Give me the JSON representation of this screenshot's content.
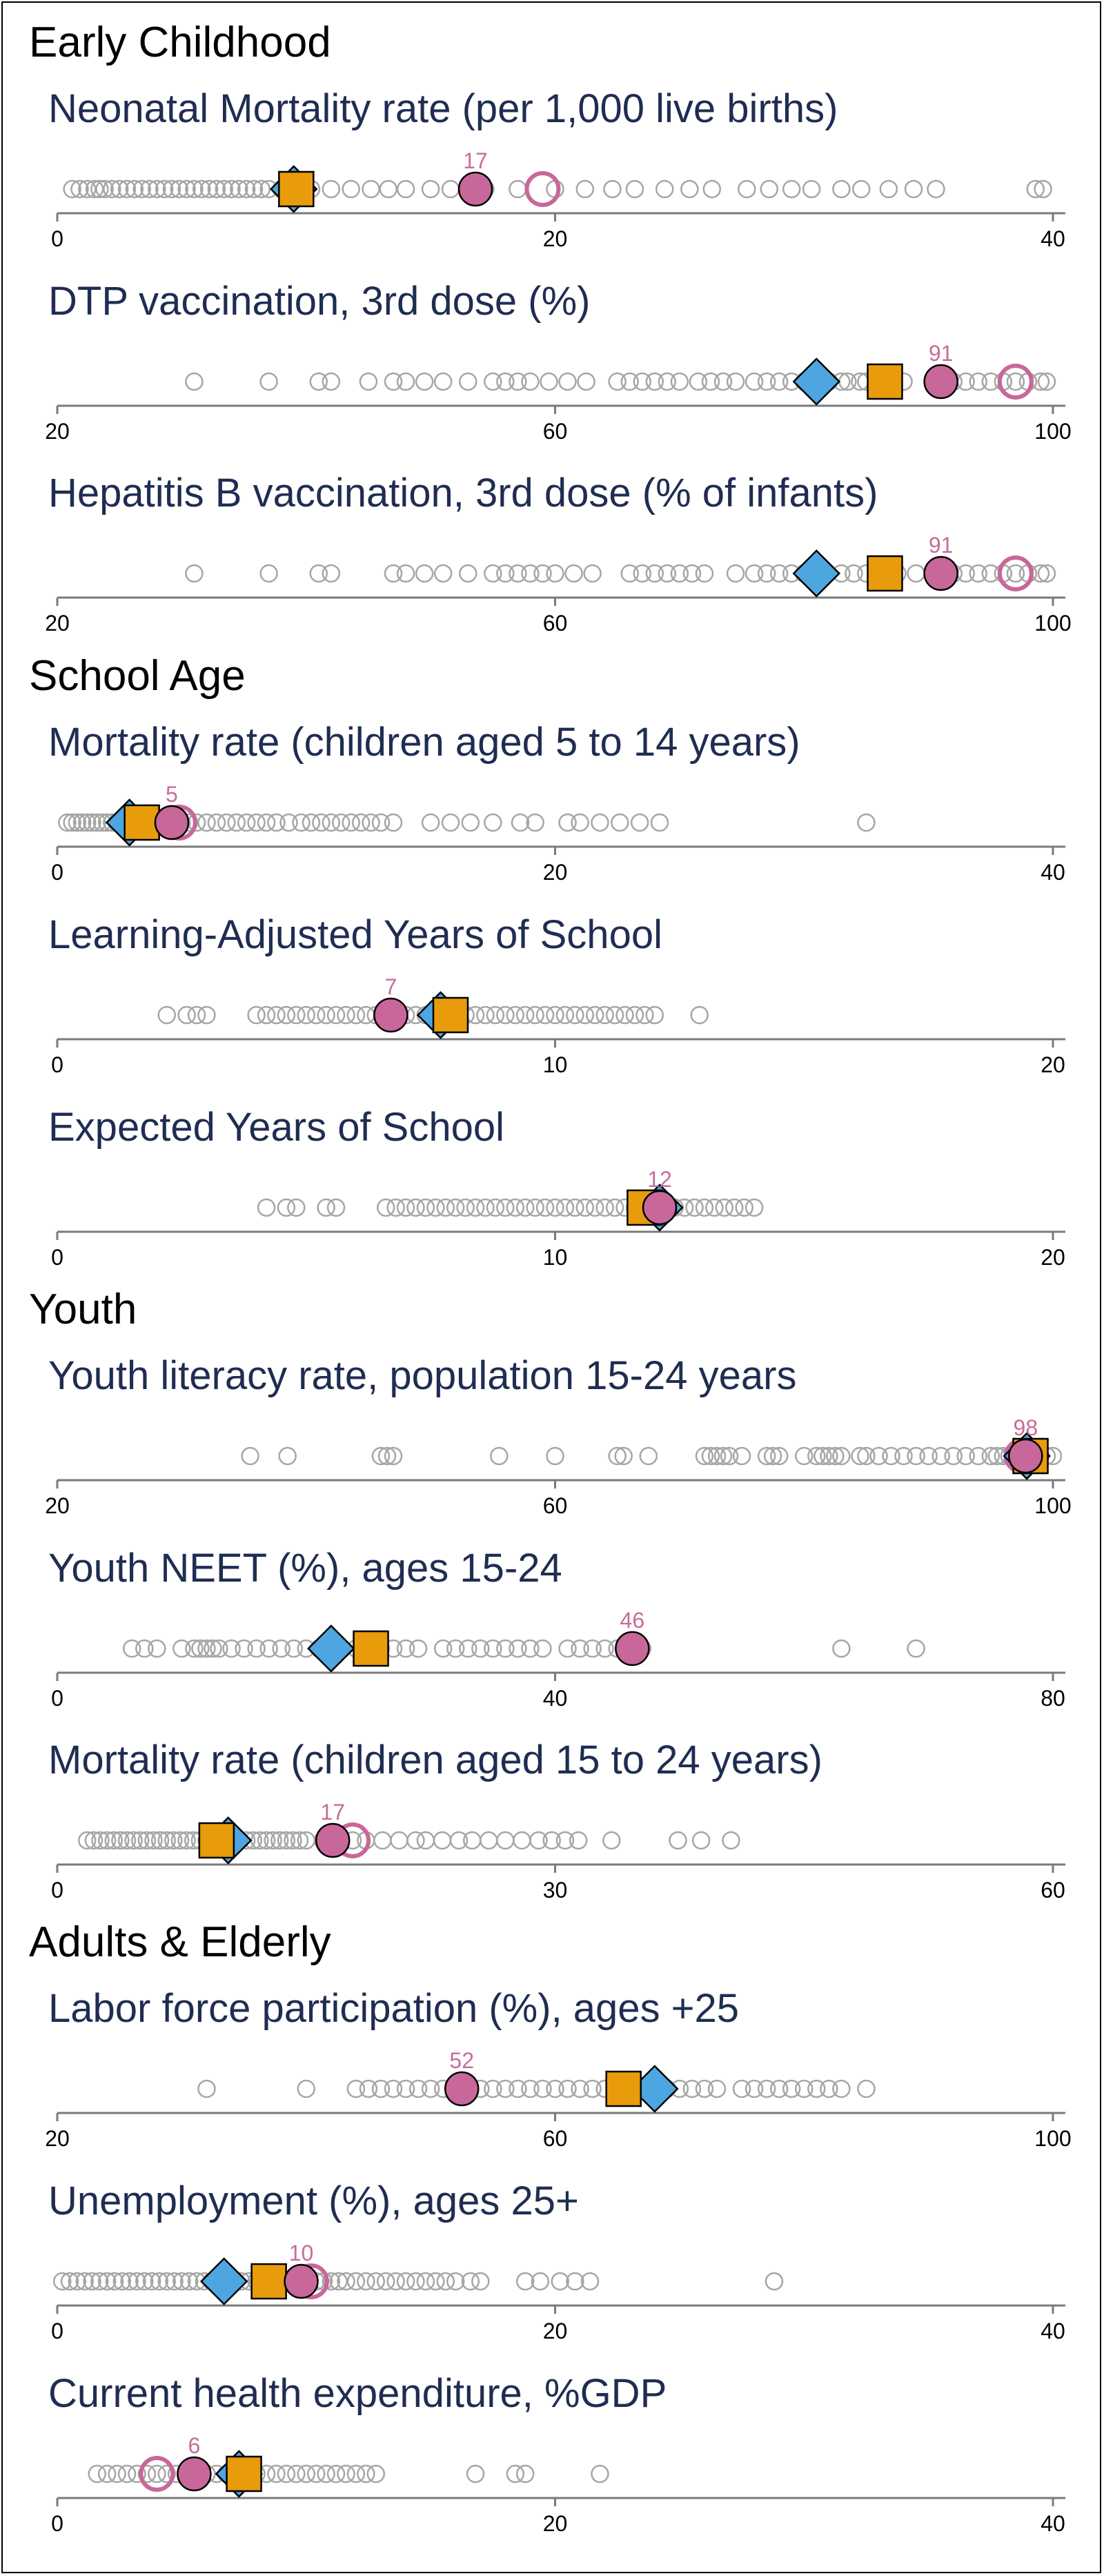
{
  "colors": {
    "other": "#a6a6a6",
    "country": "#c8679a",
    "region_square": "#e89c0c",
    "income_diamond": "#4da6df",
    "title": "#1f2d52"
  },
  "chart_data": [
    {
      "type": "scatter",
      "section": "Early Childhood",
      "title": "Neonatal Mortality rate (per 1,000 live births)",
      "xlim": [
        0,
        40
      ],
      "ticks": [
        0,
        20,
        40
      ],
      "others": [
        0.6,
        0.9,
        1.2,
        1.5,
        1.7,
        1.9,
        2.2,
        2.5,
        2.8,
        3.1,
        3.4,
        3.7,
        4.0,
        4.3,
        4.6,
        4.9,
        5.2,
        5.5,
        5.8,
        6.1,
        6.4,
        6.7,
        7.0,
        7.3,
        7.6,
        7.9,
        8.2,
        8.5,
        9.0,
        9.5,
        10.2,
        11.0,
        11.8,
        12.6,
        13.3,
        14.0,
        15.0,
        15.8,
        17.2,
        18.5,
        20.0,
        21.2,
        22.3,
        23.2,
        24.4,
        25.4,
        26.3,
        27.7,
        28.6,
        29.5,
        30.3,
        31.5,
        32.3,
        33.4,
        34.4,
        35.3,
        39.3,
        39.6
      ],
      "country": 16.8,
      "country_label": "17",
      "country_previous": 19.5,
      "region": 9.6,
      "income_group": 9.5
    },
    {
      "type": "scatter",
      "section": "",
      "title": "DTP vaccination, 3rd dose (%)",
      "xlim": [
        20,
        100
      ],
      "ticks": [
        20,
        60,
        100
      ],
      "others": [
        31,
        37,
        41,
        42,
        45,
        47,
        48,
        49.5,
        51,
        53,
        55,
        56,
        57,
        58,
        59.5,
        61,
        62.5,
        65,
        66,
        67,
        68,
        69,
        70,
        71.5,
        72.5,
        73.5,
        74.5,
        76,
        77,
        78,
        79,
        80,
        81,
        82,
        83,
        83.5,
        84.5,
        85,
        86.5,
        88,
        91,
        92,
        93,
        94,
        95,
        96,
        97,
        98,
        99,
        99.5
      ],
      "country": 91,
      "country_label": "91",
      "country_previous": 97,
      "region": 86.5,
      "income_group": 81
    },
    {
      "type": "scatter",
      "section": "",
      "title": "Hepatitis B vaccination, 3rd dose (% of infants)",
      "xlim": [
        20,
        100
      ],
      "ticks": [
        20,
        60,
        100
      ],
      "others": [
        31,
        37,
        41,
        42,
        47,
        48,
        49.5,
        51,
        53,
        55,
        56,
        57,
        58,
        59,
        60,
        61.5,
        63,
        66,
        67,
        68,
        69,
        70,
        71,
        72,
        74.5,
        76,
        77,
        78,
        79,
        80,
        81.5,
        83,
        84,
        85,
        86,
        87.5,
        89,
        92,
        93,
        94,
        95,
        96,
        97,
        98,
        99,
        99.5
      ],
      "country": 91,
      "country_label": "91",
      "country_previous": 97,
      "region": 86.5,
      "income_group": 81
    },
    {
      "type": "scatter",
      "section": "School Age",
      "title": "Mortality rate (children aged 5 to 14 years)",
      "xlim": [
        0,
        40
      ],
      "ticks": [
        0,
        20,
        40
      ],
      "others": [
        0.4,
        0.6,
        0.8,
        1.0,
        1.2,
        1.4,
        1.6,
        1.8,
        2.0,
        2.2,
        2.4,
        2.6,
        2.8,
        3.0,
        3.2,
        3.4,
        3.6,
        3.8,
        4.0,
        4.2,
        4.4,
        4.6,
        4.8,
        5.0,
        5.3,
        5.6,
        6.0,
        6.4,
        6.8,
        7.2,
        7.6,
        8.0,
        8.4,
        8.8,
        9.3,
        9.8,
        10.2,
        10.6,
        11.0,
        11.4,
        11.8,
        12.2,
        12.6,
        13.0,
        13.5,
        15.0,
        15.8,
        16.6,
        17.5,
        18.6,
        19.2,
        20.5,
        21.0,
        21.8,
        22.6,
        23.4,
        24.2,
        32.5
      ],
      "country": 4.6,
      "country_label": "5",
      "country_previous": 4.9,
      "region": 3.4,
      "income_group": 2.9
    },
    {
      "type": "scatter",
      "section": "",
      "title": "Learning-Adjusted Years of School",
      "xlim": [
        0,
        20
      ],
      "ticks": [
        0,
        10,
        20
      ],
      "others": [
        2.2,
        2.6,
        2.8,
        3.0,
        4.0,
        4.2,
        4.4,
        4.6,
        4.8,
        5.0,
        5.2,
        5.4,
        5.6,
        5.8,
        6.0,
        6.2,
        6.4,
        6.6,
        6.8,
        7.0,
        7.2,
        7.4,
        7.6,
        7.8,
        8.0,
        8.2,
        8.4,
        8.6,
        8.8,
        9.0,
        9.2,
        9.4,
        9.6,
        9.8,
        10.0,
        10.2,
        10.4,
        10.6,
        10.8,
        11.0,
        11.2,
        11.4,
        11.6,
        11.8,
        12.0,
        12.9
      ],
      "country": 6.7,
      "country_label": "7",
      "country_previous": null,
      "region": 7.9,
      "income_group": 7.7
    },
    {
      "type": "scatter",
      "section": "",
      "title": "Expected Years of School",
      "xlim": [
        0,
        20
      ],
      "ticks": [
        0,
        10,
        20
      ],
      "others": [
        4.2,
        4.6,
        4.8,
        5.4,
        5.6,
        6.6,
        6.8,
        7.0,
        7.2,
        7.4,
        7.6,
        7.8,
        8.0,
        8.2,
        8.4,
        8.6,
        8.8,
        9.0,
        9.2,
        9.4,
        9.6,
        9.8,
        10.0,
        10.2,
        10.4,
        10.6,
        10.8,
        11.0,
        11.2,
        11.4,
        11.6,
        11.8,
        12.0,
        12.2,
        12.4,
        12.6,
        12.8,
        13.0,
        13.2,
        13.4,
        13.6,
        13.8,
        14.0
      ],
      "country": 12.1,
      "country_label": "12",
      "country_previous": null,
      "region": 11.8,
      "income_group": 12.1
    },
    {
      "type": "scatter",
      "section": "Youth",
      "title": "Youth literacy rate, population 15-24 years",
      "xlim": [
        20,
        100
      ],
      "ticks": [
        20,
        60,
        100
      ],
      "others": [
        35.5,
        38.5,
        46,
        46.5,
        47,
        55.5,
        60,
        65,
        65.5,
        67.5,
        72,
        72.5,
        73,
        73.5,
        74,
        75,
        77,
        77.5,
        78,
        80,
        81,
        81.5,
        82,
        82.5,
        83,
        84.5,
        85,
        86,
        87,
        88,
        89,
        90,
        91,
        92,
        93,
        94,
        95,
        95.5,
        96,
        96.5,
        97,
        97.5,
        98,
        98.5,
        99,
        99.5,
        100
      ],
      "country": 97.8,
      "country_label": "98",
      "country_previous": 97.5,
      "region": 98.2,
      "income_group": 97.9
    },
    {
      "type": "scatter",
      "section": "",
      "title": "Youth NEET (%), ages 15-24",
      "xlim": [
        0,
        80
      ],
      "ticks": [
        0,
        40,
        80
      ],
      "others": [
        6,
        7,
        8,
        10,
        11,
        11.5,
        12,
        12.5,
        13,
        14,
        15,
        16,
        17,
        18,
        19,
        20,
        21,
        22,
        24,
        25,
        26,
        27,
        28,
        29,
        31,
        32,
        33,
        34,
        35,
        36,
        37,
        38,
        39,
        41,
        42,
        43,
        44,
        45,
        46.5,
        47,
        63,
        69
      ],
      "country": 46.2,
      "country_label": "46",
      "country_previous": null,
      "region": 25.2,
      "income_group": 22
    },
    {
      "type": "scatter",
      "section": "",
      "title": "Mortality rate (children aged 15 to 24 years)",
      "xlim": [
        0,
        60
      ],
      "ticks": [
        0,
        30,
        60
      ],
      "others": [
        1.8,
        2.2,
        2.6,
        3.0,
        3.4,
        3.8,
        4.2,
        4.6,
        5.0,
        5.4,
        5.8,
        6.2,
        6.6,
        7.0,
        7.4,
        7.8,
        8.2,
        8.6,
        9.0,
        9.4,
        9.8,
        10.2,
        10.6,
        11.0,
        11.4,
        11.8,
        12.2,
        12.6,
        13.0,
        13.4,
        13.8,
        14.2,
        14.6,
        15.0,
        16.0,
        17.0,
        17.8,
        18.6,
        19.6,
        20.6,
        21.6,
        22.2,
        23.2,
        24.2,
        25.0,
        26.0,
        27.0,
        28.0,
        29.0,
        29.8,
        30.6,
        31.4,
        33.4,
        37.4,
        38.8,
        40.6
      ],
      "country": 16.6,
      "country_label": "17",
      "country_previous": 17.8,
      "region": 9.6,
      "income_group": 10.3
    },
    {
      "type": "scatter",
      "section": "Adults & Elderly",
      "title": "Labor force participation (%), ages +25",
      "xlim": [
        20,
        100
      ],
      "ticks": [
        20,
        60,
        100
      ],
      "others": [
        32,
        40,
        44,
        45,
        46,
        47,
        48,
        49,
        50,
        51,
        52,
        53,
        54,
        55,
        56,
        57,
        58,
        59,
        60,
        61,
        62,
        63,
        64,
        65,
        66,
        69,
        70,
        71,
        72,
        73,
        75,
        76,
        77,
        78,
        79,
        80,
        81,
        82,
        83,
        85
      ],
      "country": 52.5,
      "country_label": "52",
      "country_previous": null,
      "region": 65.5,
      "income_group": 68
    },
    {
      "type": "scatter",
      "section": "",
      "title": "Unemployment (%), ages 25+",
      "xlim": [
        0,
        40
      ],
      "ticks": [
        0,
        20,
        40
      ],
      "others": [
        0.2,
        0.5,
        0.8,
        1.1,
        1.4,
        1.7,
        2.0,
        2.3,
        2.6,
        2.9,
        3.2,
        3.5,
        3.8,
        4.1,
        4.4,
        4.7,
        5.0,
        5.3,
        5.6,
        5.9,
        6.2,
        6.5,
        6.8,
        7.1,
        7.4,
        7.7,
        8.0,
        8.3,
        8.6,
        8.9,
        9.2,
        9.5,
        9.8,
        10.1,
        10.4,
        10.7,
        11.0,
        11.3,
        11.6,
        12.0,
        12.4,
        12.8,
        13.2,
        13.6,
        14.0,
        14.4,
        14.8,
        15.2,
        15.6,
        16.0,
        16.6,
        17.0,
        18.8,
        19.4,
        20.2,
        20.8,
        21.4,
        28.8
      ],
      "country": 9.8,
      "country_label": "10",
      "country_previous": 10.2,
      "region": 8.5,
      "income_group": 6.7
    },
    {
      "type": "scatter",
      "section": "",
      "title": "Current health expenditure, %GDP",
      "xlim": [
        0,
        40
      ],
      "ticks": [
        0,
        20,
        40
      ],
      "others": [
        1.6,
        2.0,
        2.4,
        2.8,
        3.2,
        3.6,
        4.0,
        4.4,
        4.8,
        5.2,
        5.6,
        6.0,
        6.4,
        6.8,
        7.2,
        7.6,
        8.0,
        8.4,
        8.8,
        9.2,
        9.6,
        10.0,
        10.4,
        10.8,
        11.2,
        11.6,
        12.0,
        12.4,
        12.8,
        16.8,
        18.4,
        18.8,
        21.8
      ],
      "country": 5.5,
      "country_label": "6",
      "country_previous": 4.0,
      "region": 7.5,
      "income_group": 7.3
    }
  ]
}
